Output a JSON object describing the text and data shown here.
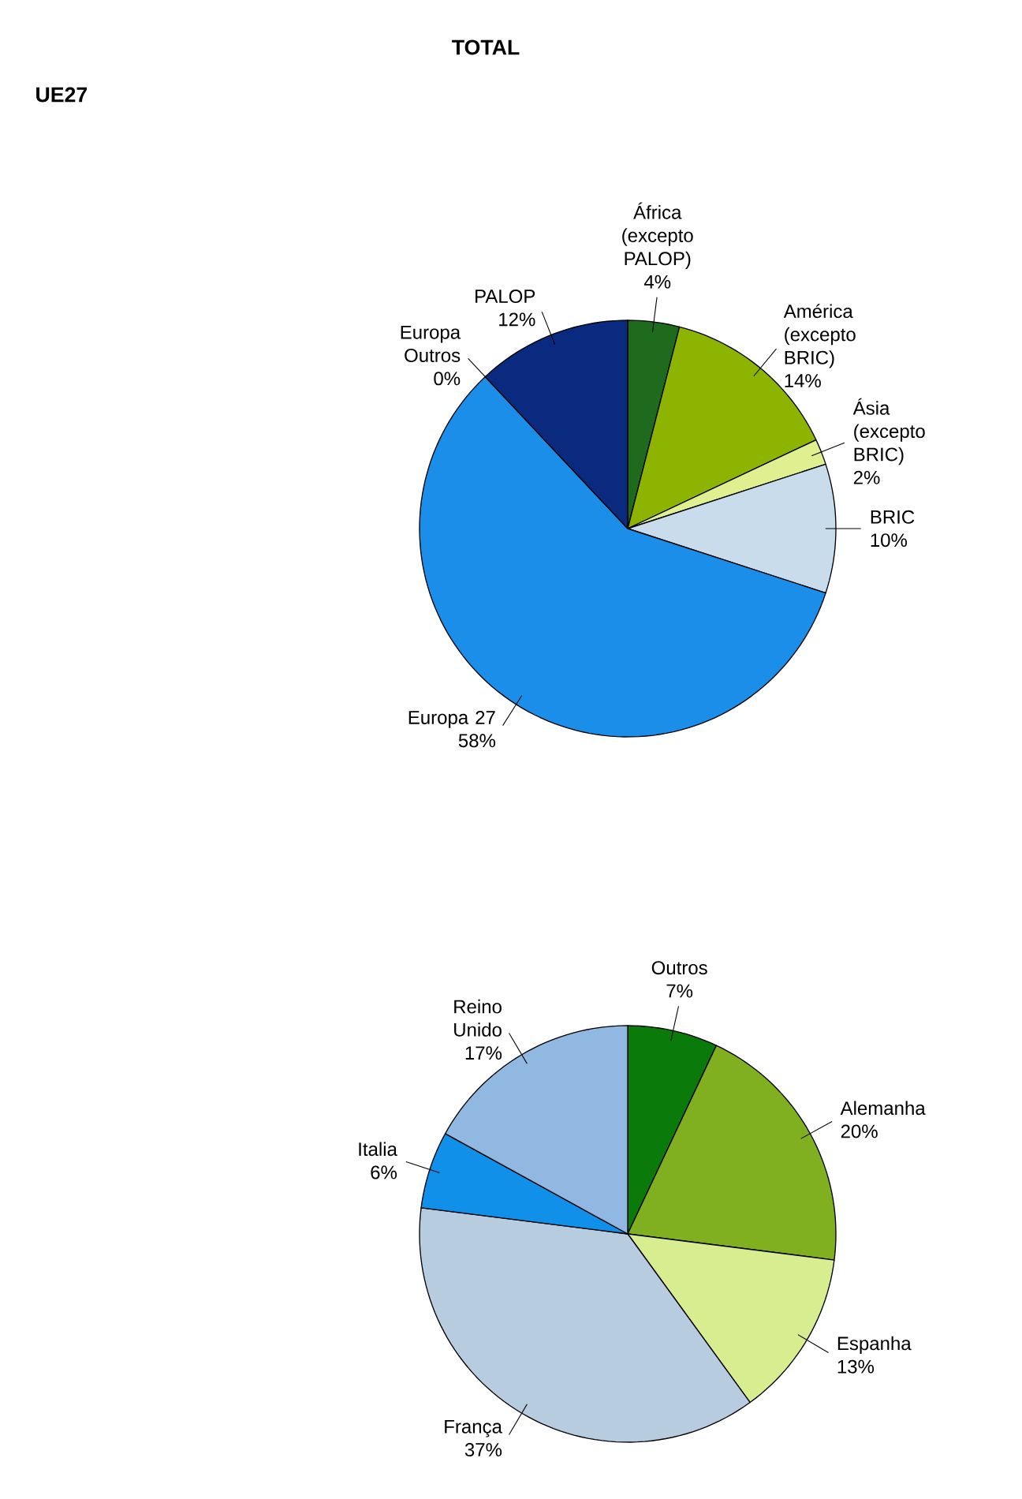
{
  "chart_data": [
    {
      "type": "pie",
      "title": "TOTAL",
      "categories": [
        "África (excepto PALOP)",
        "América (excepto BRIC)",
        "Ásia (excepto BRIC)",
        "BRIC",
        "Europa 27",
        "Europa Outros",
        "PALOP"
      ],
      "values": [
        4,
        14,
        2,
        10,
        58,
        0,
        12
      ],
      "value_labels": [
        "4%",
        "14%",
        "2%",
        "10%",
        "58%",
        "0%",
        "12%"
      ],
      "colors": [
        "#1e6b1e",
        "#8cb400",
        "#e0f090",
        "#c8dcec",
        "#1a8ee8",
        "#3050a0",
        "#0a2a80"
      ]
    },
    {
      "type": "pie",
      "title": "UE27",
      "categories": [
        "Outros",
        "Alemanha",
        "Espanha",
        "França",
        "Italia",
        "Reino Unido"
      ],
      "values": [
        7,
        20,
        13,
        37,
        6,
        17
      ],
      "value_labels": [
        "7%",
        "20%",
        "13%",
        "37%",
        "6%",
        "17%"
      ],
      "colors": [
        "#0a7a0a",
        "#80b020",
        "#d8ec90",
        "#b8cce0",
        "#1090e8",
        "#90b8e0"
      ]
    }
  ]
}
